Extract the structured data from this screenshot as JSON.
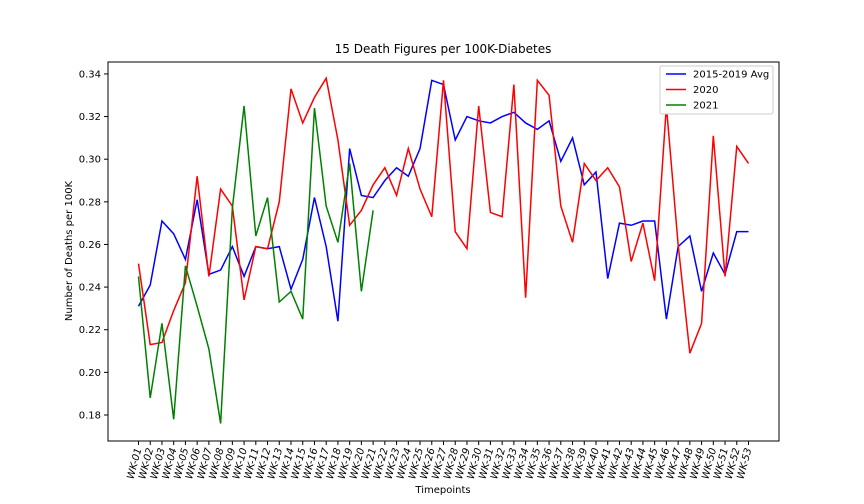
{
  "chart_data": {
    "type": "line",
    "title": "15 Death Figures per 100K-Diabetes",
    "x_label": "Timepoints",
    "y_label": "Number of Deaths per 100K",
    "categories": [
      "WK-01",
      "WK-02",
      "WK-03",
      "WK-04",
      "WK-05",
      "WK-06",
      "WK-07",
      "WK-08",
      "WK-09",
      "WK-10",
      "WK-11",
      "WK-12",
      "WK-13",
      "WK-14",
      "WK-15",
      "WK-16",
      "WK-17",
      "WK-18",
      "WK-19",
      "WK-20",
      "WK-21",
      "WK-22",
      "WK-23",
      "WK-24",
      "WK-25",
      "WK-26",
      "WK-27",
      "WK-28",
      "WK-29",
      "WK-30",
      "WK-31",
      "WK-32",
      "WK-33",
      "WK-34",
      "WK-35",
      "WK-36",
      "WK-37",
      "WK-38",
      "WK-39",
      "WK-40",
      "WK-41",
      "WK-42",
      "WK-43",
      "WK-44",
      "WK-45",
      "WK-46",
      "WK-47",
      "WK-48",
      "WK-49",
      "WK-50",
      "WK-51",
      "WK-52",
      "WK-53"
    ],
    "series": [
      {
        "name": "2015-2019 Avg",
        "color": "#0000ff",
        "values": [
          0.231,
          0.241,
          0.271,
          0.265,
          0.253,
          0.281,
          0.246,
          0.248,
          0.259,
          0.245,
          0.259,
          0.258,
          0.259,
          0.239,
          0.253,
          0.282,
          0.259,
          0.224,
          0.305,
          0.283,
          0.282,
          0.29,
          0.296,
          0.292,
          0.305,
          0.337,
          0.335,
          0.309,
          0.32,
          0.318,
          0.317,
          0.32,
          0.322,
          0.317,
          0.314,
          0.318,
          0.299,
          0.31,
          0.288,
          0.294,
          0.244,
          0.27,
          0.269,
          0.271,
          0.271,
          0.225,
          0.259,
          0.264,
          0.238,
          0.256,
          0.246,
          0.266,
          0.266
        ]
      },
      {
        "name": "2020",
        "color": "#ff0000",
        "values": [
          0.251,
          0.213,
          0.214,
          0.229,
          0.242,
          0.292,
          0.245,
          0.286,
          0.278,
          0.234,
          0.259,
          0.258,
          0.28,
          0.333,
          0.317,
          0.329,
          0.338,
          0.309,
          0.269,
          0.276,
          0.288,
          0.296,
          0.283,
          0.305,
          0.286,
          0.273,
          0.337,
          0.266,
          0.258,
          0.325,
          0.275,
          0.273,
          0.335,
          0.235,
          0.337,
          0.33,
          0.278,
          0.261,
          0.298,
          0.29,
          0.296,
          0.287,
          0.252,
          0.27,
          0.243,
          0.325,
          0.26,
          0.209,
          0.223,
          0.311,
          0.245,
          0.306,
          0.298
        ]
      },
      {
        "name": "2021",
        "color": "#008000",
        "values": [
          0.245,
          0.188,
          0.223,
          0.178,
          0.25,
          0.231,
          0.211,
          0.176,
          0.277,
          0.325,
          0.264,
          0.282,
          0.233,
          0.238,
          0.225,
          0.324,
          0.278,
          0.261,
          0.298,
          0.238,
          0.276,
          null,
          null,
          null,
          null,
          null,
          null,
          null,
          null,
          null,
          null,
          null,
          null,
          null,
          null,
          null,
          null,
          null,
          null,
          null,
          null,
          null,
          null,
          null,
          null,
          null,
          null,
          null,
          null,
          null,
          null,
          null,
          null
        ]
      }
    ],
    "ylim": [
      0.1678,
      0.3456
    ],
    "yticks": [
      0.18,
      {
        "value": 0.2,
        "label": "0.20"
      },
      0.22,
      0.24,
      0.26,
      0.28,
      {
        "value": 0.3,
        "label": "0.30"
      },
      0.32,
      0.34
    ],
    "legend": "upper right"
  }
}
